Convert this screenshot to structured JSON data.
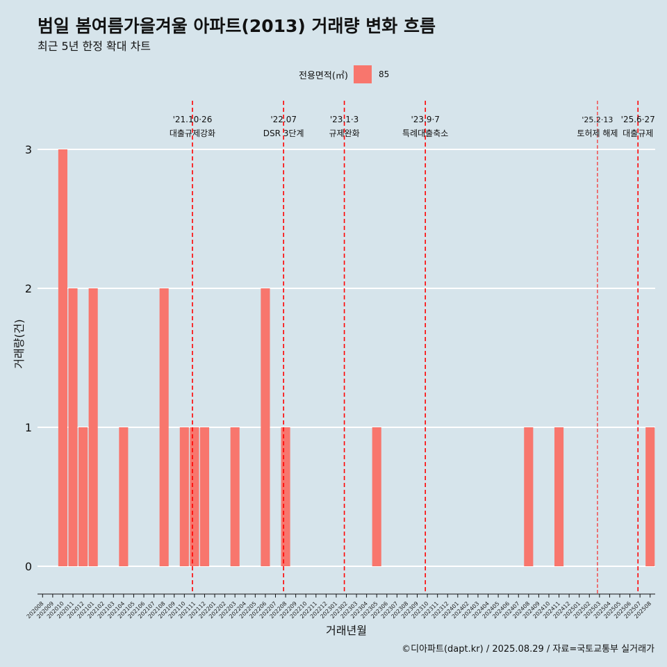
{
  "header": {
    "title": "범일 봄여름가을겨울 아파트(2013) 거래량 변화 흐름",
    "subtitle": "최근 5년 한정 확대 차트"
  },
  "legend": {
    "title": "전용면적(㎡)",
    "label": "85",
    "color": "#f8766d"
  },
  "caption": "©디아파트(dapt.kr) / 2025.08.29 / 자료=국토교통부 실거래가",
  "colors": {
    "background": "#d6e4eb",
    "bar": "#f8766d",
    "event_line": "#ff0000",
    "grid": "#ffffff"
  },
  "chart_data": {
    "type": "bar",
    "xlabel": "거래년월",
    "ylabel": "거래량(건)",
    "ylim": [
      -0.15,
      3.35
    ],
    "yticks": [
      0,
      1,
      2,
      3
    ],
    "categories": [
      "202008",
      "202009",
      "202010",
      "202011",
      "202012",
      "202101",
      "202102",
      "202103",
      "202104",
      "202105",
      "202106",
      "202107",
      "202108",
      "202109",
      "202110",
      "202111",
      "202112",
      "202201",
      "202202",
      "202203",
      "202204",
      "202205",
      "202206",
      "202207",
      "202208",
      "202209",
      "202210",
      "202211",
      "202212",
      "202301",
      "202302",
      "202303",
      "202304",
      "202305",
      "202306",
      "202307",
      "202308",
      "202309",
      "202310",
      "202311",
      "202312",
      "202401",
      "202402",
      "202403",
      "202404",
      "202405",
      "202406",
      "202407",
      "202408",
      "202409",
      "202410",
      "202411",
      "202412",
      "202501",
      "202502",
      "202503",
      "202504",
      "202505",
      "202506",
      "202507",
      "202508"
    ],
    "series": [
      {
        "name": "85",
        "values": [
          0,
          0,
          3,
          2,
          1,
          2,
          0,
          0,
          1,
          0,
          0,
          0,
          2,
          0,
          1,
          1,
          1,
          0,
          0,
          1,
          0,
          0,
          2,
          0,
          1,
          0,
          0,
          0,
          0,
          0,
          0,
          0,
          0,
          1,
          0,
          0,
          0,
          0,
          0,
          0,
          0,
          0,
          0,
          0,
          0,
          0,
          0,
          0,
          1,
          0,
          0,
          1,
          0,
          0,
          0,
          0,
          0,
          0,
          0,
          0,
          1
        ]
      }
    ],
    "events": [
      {
        "date": "'21.10·26",
        "label": "대출규제강화",
        "index": 14.8,
        "style": "dashed"
      },
      {
        "date": "'22.07",
        "label": "DSR 3단계",
        "index": 23.8,
        "style": "dashed"
      },
      {
        "date": "'23.1·3",
        "label": "규제완화",
        "index": 29.8,
        "style": "dashed"
      },
      {
        "date": "'23.9·7",
        "label": "특례대출축소",
        "index": 37.8,
        "style": "dashed"
      },
      {
        "date": "'25.2·13",
        "label": "토허제 해제",
        "index": 54.8,
        "style": "thin"
      },
      {
        "date": "'25.6·27",
        "label": "대출규제",
        "index": 58.8,
        "style": "dashed"
      }
    ]
  }
}
